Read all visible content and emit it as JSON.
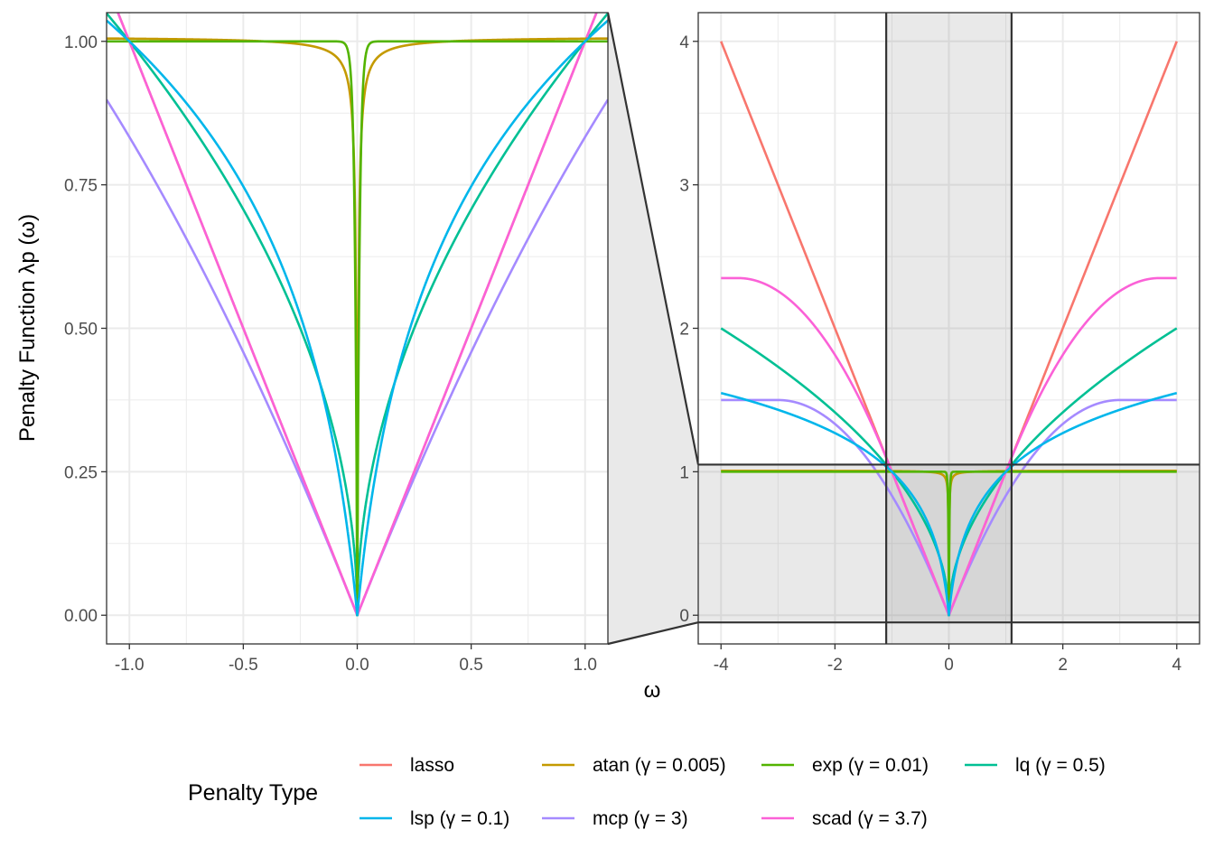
{
  "chart_data": {
    "type": "line",
    "ylabel": "Penalty Function λp (ω)",
    "xlabel": "ω",
    "legend_title": "Penalty Type",
    "legend_position": "bottom",
    "series": [
      {
        "key": "lasso",
        "name": "lasso",
        "color": "#F8766D"
      },
      {
        "key": "atan",
        "name": "atan (γ = 0.005)",
        "color": "#C49A00"
      },
      {
        "key": "exp",
        "name": "exp (γ = 0.01)",
        "color": "#53B400"
      },
      {
        "key": "lq",
        "name": "lq (γ = 0.5)",
        "color": "#00C094"
      },
      {
        "key": "lsp",
        "name": "lsp (γ = 0.1)",
        "color": "#00B6EB"
      },
      {
        "key": "mcp",
        "name": "mcp (γ = 3)",
        "color": "#A58AFF"
      },
      {
        "key": "scad",
        "name": "scad (γ = 3.7)",
        "color": "#FB61D7"
      }
    ],
    "panels": [
      {
        "name": "zoom",
        "xlim": [
          -1.1,
          1.1
        ],
        "ylim": [
          -0.05,
          1.05
        ],
        "x_ticks": [
          -1.0,
          -0.5,
          0.0,
          0.5,
          1.0
        ],
        "x_tick_labels": [
          "-1.0",
          "-0.5",
          "0.0",
          "0.5",
          "1.0"
        ],
        "y_ticks": [
          0.0,
          0.25,
          0.5,
          0.75,
          1.0
        ],
        "y_tick_labels": [
          "0.00",
          "0.25",
          "0.50",
          "0.75",
          "1.00"
        ],
        "grid": true
      },
      {
        "name": "full",
        "xlim": [
          -4.4,
          4.4
        ],
        "ylim": [
          -0.2,
          4.2
        ],
        "x_ticks": [
          -4,
          -2,
          0,
          2,
          4
        ],
        "x_tick_labels": [
          "-4",
          "-2",
          "0",
          "2",
          "4"
        ],
        "y_ticks": [
          0,
          1,
          2,
          3,
          4
        ],
        "y_tick_labels": [
          "0",
          "1",
          "2",
          "3",
          "4"
        ],
        "grid": true,
        "zoom_region": {
          "x": [
            -1.1,
            1.1
          ],
          "y": [
            -0.05,
            1.05
          ]
        }
      }
    ]
  }
}
